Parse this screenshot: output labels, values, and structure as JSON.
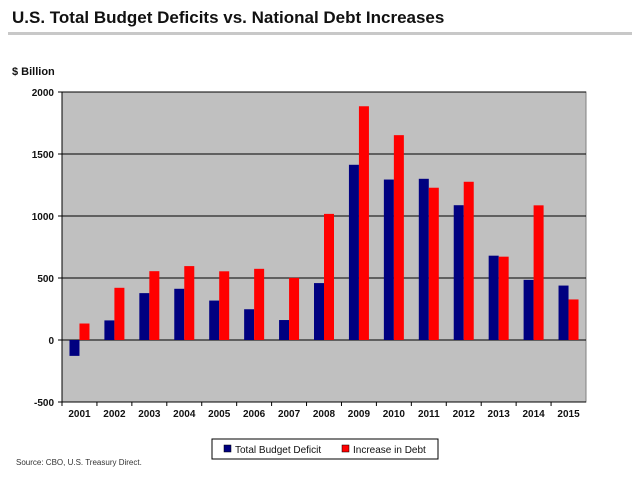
{
  "title": "U.S. Total Budget Deficits vs. National Debt Increases",
  "source": "Source: CBO, U.S. Treasury Direct.",
  "colors": {
    "plot_background": "#c0c0c0",
    "deficit": "#000080",
    "debt_increase": "#ff0000",
    "gridline": "#000000"
  },
  "chart_data": {
    "type": "bar",
    "title": "U.S. Total Budget Deficits vs. National Debt Increases",
    "ylabel": "$ Billion",
    "xlabel": "",
    "ylim": [
      -500,
      2000
    ],
    "yticks": [
      2000,
      1500,
      1000,
      500,
      0,
      -500
    ],
    "grid": true,
    "legend_position": "bottom",
    "categories": [
      "2001",
      "2002",
      "2003",
      "2004",
      "2005",
      "2006",
      "2007",
      "2008",
      "2009",
      "2010",
      "2011",
      "2012",
      "2013",
      "2014",
      "2015"
    ],
    "series": [
      {
        "name": "Total Budget Deficit",
        "color": "#000080",
        "values": [
          -128,
          158,
          378,
          413,
          318,
          248,
          161,
          459,
          1413,
          1294,
          1300,
          1087,
          680,
          485,
          439
        ]
      },
      {
        "name": "Increase in Debt",
        "color": "#ff0000",
        "values": [
          133,
          421,
          555,
          596,
          554,
          574,
          501,
          1017,
          1885,
          1652,
          1228,
          1276,
          672,
          1086,
          327
        ]
      }
    ]
  }
}
